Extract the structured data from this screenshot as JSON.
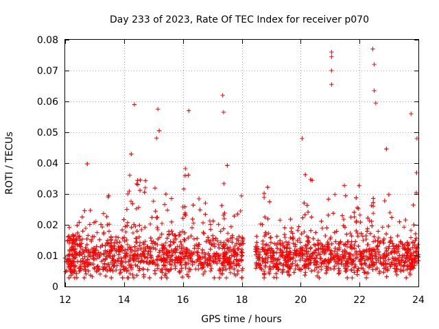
{
  "chart_data": {
    "type": "scatter",
    "title": "Day 233 of 2023, Rate Of TEC Index for receiver p070",
    "xlabel": "GPS time / hours",
    "ylabel": "ROTI / TECUs",
    "xlim": [
      12,
      24
    ],
    "ylim": [
      0,
      0.08
    ],
    "xticks": [
      12,
      14,
      16,
      18,
      20,
      22,
      24
    ],
    "xtick_labels": [
      "12",
      "14",
      "16",
      "18",
      "20",
      "22",
      "24"
    ],
    "yticks": [
      0,
      0.01,
      0.02,
      0.03,
      0.04,
      0.05,
      0.06,
      0.07,
      0.08
    ],
    "ytick_labels": [
      "0",
      "0.01",
      "0.02",
      "0.03",
      "0.04",
      "0.05",
      "0.06",
      "0.07",
      "0.08"
    ],
    "grid": true,
    "marker": "+",
    "color": "#ff0000",
    "data_gap": [
      18.05,
      18.45
    ],
    "notable_points": [
      {
        "x": 14.35,
        "y": 0.059
      },
      {
        "x": 15.15,
        "y": 0.0575
      },
      {
        "x": 16.2,
        "y": 0.057
      },
      {
        "x": 17.35,
        "y": 0.062
      },
      {
        "x": 17.38,
        "y": 0.0565
      },
      {
        "x": 21.05,
        "y": 0.076
      },
      {
        "x": 21.05,
        "y": 0.0745
      },
      {
        "x": 21.05,
        "y": 0.07
      },
      {
        "x": 21.05,
        "y": 0.0655
      },
      {
        "x": 22.45,
        "y": 0.077
      },
      {
        "x": 22.5,
        "y": 0.072
      },
      {
        "x": 22.5,
        "y": 0.0635
      },
      {
        "x": 22.55,
        "y": 0.0595
      },
      {
        "x": 20.05,
        "y": 0.048
      },
      {
        "x": 23.75,
        "y": 0.056
      },
      {
        "x": 23.95,
        "y": 0.048
      }
    ]
  }
}
